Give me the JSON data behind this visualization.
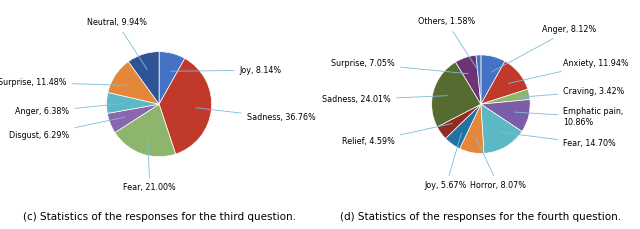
{
  "chart_c": {
    "labels": [
      "Joy",
      "Sadness",
      "Fear",
      "Disgust",
      "Anger",
      "Surprise",
      "Neutral"
    ],
    "values": [
      8.14,
      36.76,
      21.0,
      6.29,
      6.38,
      11.48,
      9.94
    ],
    "colors": [
      "#4472C4",
      "#C0392B",
      "#8DB56C",
      "#8B66B0",
      "#5BB8C4",
      "#E5873A",
      "#2F5496"
    ],
    "caption": "(c) Statistics of the responses for the third question."
  },
  "chart_d": {
    "labels": [
      "Anger",
      "Anxiety",
      "Craving",
      "Emphatic pain",
      "Fear",
      "Horror",
      "Joy",
      "Relief",
      "Sadness",
      "Surprise",
      "Others"
    ],
    "values": [
      8.12,
      11.94,
      3.42,
      10.86,
      14.7,
      8.07,
      5.67,
      4.59,
      24.01,
      7.05,
      1.58
    ],
    "colors": [
      "#4472C4",
      "#C0392B",
      "#8DB56C",
      "#7B5EA7",
      "#5BB8C4",
      "#E5873A",
      "#2471A3",
      "#922B21",
      "#556B2F",
      "#6A3572",
      "#4472C4"
    ],
    "caption": "(d) Statistics of the responses for the fourth question."
  },
  "annotation_color": "#7FBBDB",
  "font_size_label": 5.8,
  "font_size_caption": 7.5
}
